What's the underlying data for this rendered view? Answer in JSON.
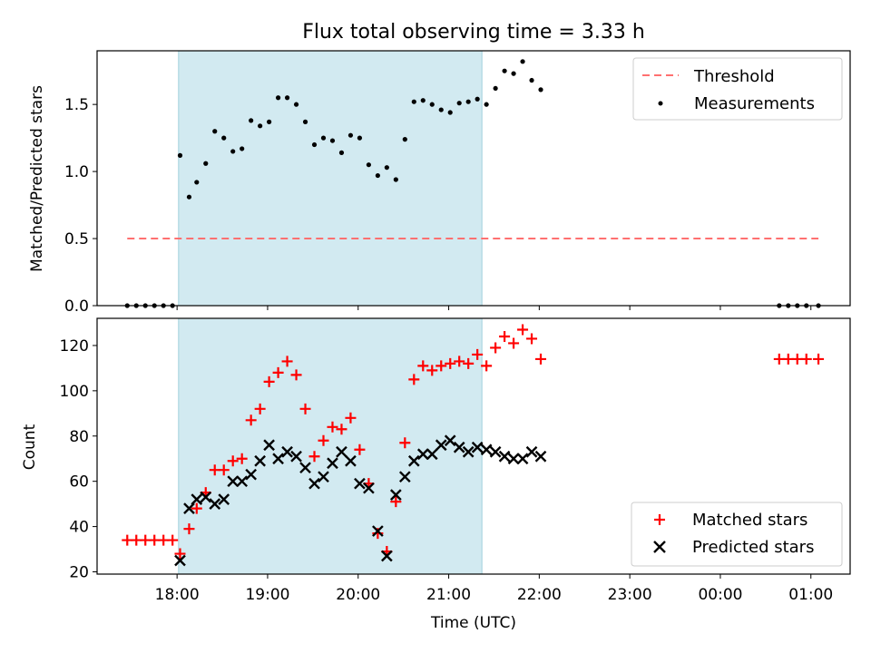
{
  "figure": {
    "title": "Flux total observing time = 3.33 h"
  },
  "chart_data": [
    {
      "type": "scatter",
      "panel": "top",
      "title": "Flux total observing time = 3.33 h",
      "xlabel": "",
      "ylabel": "Matched/Predicted stars",
      "x_unit": "hours after 17:00 UTC",
      "xlim": [
        "17:07",
        "01:26"
      ],
      "ylim": [
        0,
        1.9
      ],
      "yticks": [
        0.0,
        0.5,
        1.0,
        1.5
      ],
      "ytick_labels": [
        "0.0",
        "0.5",
        "1.0",
        "1.5"
      ],
      "shaded_span": {
        "start": "18:01",
        "end": "21:22",
        "color": "#add8e6"
      },
      "legend": {
        "position": "top-right",
        "entries": [
          "Threshold",
          "Measurements"
        ]
      },
      "series": [
        {
          "name": "Threshold",
          "kind": "dashed-line",
          "color": "#ff6b6b",
          "points": [
            [
              "17:27",
              0.5
            ],
            [
              "01:05",
              0.5
            ]
          ]
        },
        {
          "name": "Measurements",
          "kind": "dots",
          "color": "#000000",
          "points": [
            [
              "17:27",
              0.0
            ],
            [
              "17:33",
              0.0
            ],
            [
              "17:39",
              0.0
            ],
            [
              "17:45",
              0.0
            ],
            [
              "17:51",
              0.0
            ],
            [
              "17:57",
              0.0
            ],
            [
              "18:02",
              1.12
            ],
            [
              "18:08",
              0.81
            ],
            [
              "18:13",
              0.92
            ],
            [
              "18:19",
              1.06
            ],
            [
              "18:25",
              1.3
            ],
            [
              "18:31",
              1.25
            ],
            [
              "18:37",
              1.15
            ],
            [
              "18:43",
              1.17
            ],
            [
              "18:49",
              1.38
            ],
            [
              "18:55",
              1.34
            ],
            [
              "19:01",
              1.37
            ],
            [
              "19:07",
              1.55
            ],
            [
              "19:13",
              1.55
            ],
            [
              "19:19",
              1.5
            ],
            [
              "19:25",
              1.37
            ],
            [
              "19:31",
              1.2
            ],
            [
              "19:37",
              1.25
            ],
            [
              "19:43",
              1.23
            ],
            [
              "19:49",
              1.14
            ],
            [
              "19:55",
              1.27
            ],
            [
              "20:01",
              1.25
            ],
            [
              "20:07",
              1.05
            ],
            [
              "20:13",
              0.97
            ],
            [
              "20:19",
              1.03
            ],
            [
              "20:25",
              0.94
            ],
            [
              "20:31",
              1.24
            ],
            [
              "20:37",
              1.52
            ],
            [
              "20:43",
              1.53
            ],
            [
              "20:49",
              1.5
            ],
            [
              "20:55",
              1.46
            ],
            [
              "21:01",
              1.44
            ],
            [
              "21:07",
              1.51
            ],
            [
              "21:13",
              1.52
            ],
            [
              "21:19",
              1.54
            ],
            [
              "21:25",
              1.5
            ],
            [
              "21:31",
              1.62
            ],
            [
              "21:37",
              1.75
            ],
            [
              "21:43",
              1.73
            ],
            [
              "21:49",
              1.82
            ],
            [
              "21:55",
              1.68
            ],
            [
              "22:01",
              1.61
            ],
            [
              "00:39",
              0.0
            ],
            [
              "00:45",
              0.0
            ],
            [
              "00:51",
              0.0
            ],
            [
              "00:57",
              0.0
            ],
            [
              "01:05",
              0.0
            ]
          ]
        }
      ]
    },
    {
      "type": "scatter",
      "panel": "bottom",
      "xlabel": "Time (UTC)",
      "ylabel": "Count",
      "x_unit": "hours after 17:00 UTC",
      "xlim": [
        "17:07",
        "01:26"
      ],
      "ylim": [
        19,
        132
      ],
      "yticks": [
        20,
        40,
        60,
        80,
        100,
        120
      ],
      "ytick_labels": [
        "20",
        "40",
        "60",
        "80",
        "100",
        "120"
      ],
      "xticks": [
        1,
        2,
        3,
        4,
        5,
        6,
        7,
        8
      ],
      "xtick_labels": [
        "18:00",
        "19:00",
        "20:00",
        "21:00",
        "22:00",
        "23:00",
        "00:00",
        "01:00"
      ],
      "shaded_span": {
        "start": "18:01",
        "end": "21:22",
        "color": "#add8e6"
      },
      "legend": {
        "position": "bottom-right",
        "entries": [
          "Matched stars",
          "Predicted stars"
        ]
      },
      "series": [
        {
          "name": "Matched stars",
          "marker": "plus",
          "color": "#ff0000",
          "points": [
            [
              "17:27",
              34
            ],
            [
              "17:33",
              34
            ],
            [
              "17:39",
              34
            ],
            [
              "17:45",
              34
            ],
            [
              "17:51",
              34
            ],
            [
              "17:57",
              34
            ],
            [
              "18:02",
              28
            ],
            [
              "18:08",
              39
            ],
            [
              "18:13",
              48
            ],
            [
              "18:19",
              55
            ],
            [
              "18:25",
              65
            ],
            [
              "18:31",
              65
            ],
            [
              "18:37",
              69
            ],
            [
              "18:43",
              70
            ],
            [
              "18:49",
              87
            ],
            [
              "18:55",
              92
            ],
            [
              "19:01",
              104
            ],
            [
              "19:07",
              108
            ],
            [
              "19:13",
              113
            ],
            [
              "19:19",
              107
            ],
            [
              "19:25",
              92
            ],
            [
              "19:31",
              71
            ],
            [
              "19:37",
              78
            ],
            [
              "19:43",
              84
            ],
            [
              "19:49",
              83
            ],
            [
              "19:55",
              88
            ],
            [
              "20:01",
              74
            ],
            [
              "20:07",
              59
            ],
            [
              "20:13",
              37
            ],
            [
              "20:19",
              29
            ],
            [
              "20:25",
              51
            ],
            [
              "20:31",
              77
            ],
            [
              "20:37",
              105
            ],
            [
              "20:43",
              111
            ],
            [
              "20:49",
              109
            ],
            [
              "20:55",
              111
            ],
            [
              "21:01",
              112
            ],
            [
              "21:07",
              113
            ],
            [
              "21:13",
              112
            ],
            [
              "21:19",
              116
            ],
            [
              "21:25",
              111
            ],
            [
              "21:31",
              119
            ],
            [
              "21:37",
              124
            ],
            [
              "21:43",
              121
            ],
            [
              "21:49",
              127
            ],
            [
              "21:55",
              123
            ],
            [
              "22:01",
              114
            ],
            [
              "00:39",
              114
            ],
            [
              "00:45",
              114
            ],
            [
              "00:51",
              114
            ],
            [
              "00:57",
              114
            ],
            [
              "01:05",
              114
            ]
          ]
        },
        {
          "name": "Predicted stars",
          "marker": "cross",
          "color": "#000000",
          "points": [
            [
              "18:02",
              25
            ],
            [
              "18:08",
              48
            ],
            [
              "18:13",
              52
            ],
            [
              "18:19",
              53
            ],
            [
              "18:25",
              50
            ],
            [
              "18:31",
              52
            ],
            [
              "18:37",
              60
            ],
            [
              "18:43",
              60
            ],
            [
              "18:49",
              63
            ],
            [
              "18:55",
              69
            ],
            [
              "19:01",
              76
            ],
            [
              "19:07",
              70
            ],
            [
              "19:13",
              73
            ],
            [
              "19:19",
              71
            ],
            [
              "19:25",
              66
            ],
            [
              "19:31",
              59
            ],
            [
              "19:37",
              62
            ],
            [
              "19:43",
              68
            ],
            [
              "19:49",
              73
            ],
            [
              "19:55",
              69
            ],
            [
              "20:01",
              59
            ],
            [
              "20:07",
              57
            ],
            [
              "20:13",
              38
            ],
            [
              "20:19",
              27
            ],
            [
              "20:25",
              54
            ],
            [
              "20:31",
              62
            ],
            [
              "20:37",
              69
            ],
            [
              "20:43",
              72
            ],
            [
              "20:49",
              72
            ],
            [
              "20:55",
              76
            ],
            [
              "21:01",
              78
            ],
            [
              "21:07",
              75
            ],
            [
              "21:13",
              73
            ],
            [
              "21:19",
              75
            ],
            [
              "21:25",
              74
            ],
            [
              "21:31",
              73
            ],
            [
              "21:37",
              71
            ],
            [
              "21:43",
              70
            ],
            [
              "21:49",
              70
            ],
            [
              "21:55",
              73
            ],
            [
              "22:01",
              71
            ]
          ]
        }
      ]
    }
  ]
}
